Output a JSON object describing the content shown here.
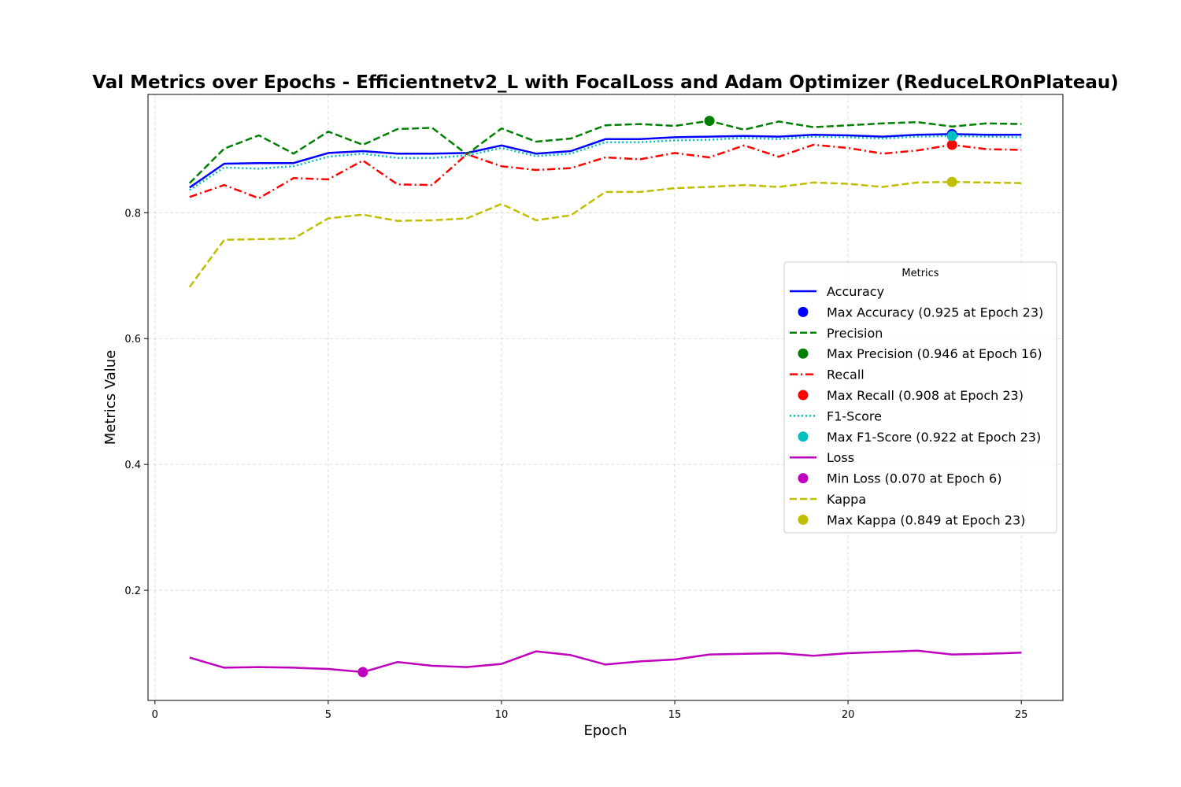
{
  "chart_data": {
    "type": "line",
    "title": "Val Metrics over Epochs - Efficientnetv2_L with FocalLoss and Adam Optimizer (ReduceLROnPlateau)",
    "xlabel": "Epoch",
    "ylabel": "Metrics Value",
    "xlim": [
      -0.2,
      26.2
    ],
    "ylim": [
      0.025,
      0.988
    ],
    "xticks": [
      0,
      5,
      10,
      15,
      20,
      25
    ],
    "yticks": [
      0.2,
      0.4,
      0.6,
      0.8
    ],
    "grid": true,
    "legend": {
      "title": "Metrics",
      "placement": "center-right"
    },
    "x": [
      1,
      2,
      3,
      4,
      5,
      6,
      7,
      8,
      9,
      10,
      11,
      12,
      13,
      14,
      15,
      16,
      17,
      18,
      19,
      20,
      21,
      22,
      23,
      24,
      25
    ],
    "series": [
      {
        "name": "Accuracy",
        "color": "#0000ff",
        "style": "solid",
        "values": [
          0.84,
          0.878,
          0.879,
          0.879,
          0.895,
          0.898,
          0.894,
          0.894,
          0.895,
          0.907,
          0.894,
          0.898,
          0.917,
          0.917,
          0.92,
          0.921,
          0.922,
          0.921,
          0.924,
          0.923,
          0.921,
          0.924,
          0.925,
          0.924,
          0.924
        ]
      },
      {
        "name": "Precision",
        "color": "#008000",
        "style": "dashed",
        "values": [
          0.847,
          0.902,
          0.923,
          0.894,
          0.929,
          0.908,
          0.933,
          0.935,
          0.893,
          0.934,
          0.913,
          0.918,
          0.939,
          0.941,
          0.938,
          0.946,
          0.932,
          0.945,
          0.936,
          0.939,
          0.942,
          0.944,
          0.937,
          0.942,
          0.941
        ]
      },
      {
        "name": "Recall",
        "color": "#ff0000",
        "style": "dashdot",
        "values": [
          0.825,
          0.844,
          0.823,
          0.855,
          0.853,
          0.883,
          0.845,
          0.844,
          0.893,
          0.874,
          0.868,
          0.871,
          0.888,
          0.885,
          0.895,
          0.888,
          0.907,
          0.889,
          0.908,
          0.903,
          0.894,
          0.899,
          0.908,
          0.901,
          0.9
        ]
      },
      {
        "name": "F1-Score",
        "color": "#00bfbf",
        "style": "dotted",
        "values": [
          0.836,
          0.872,
          0.87,
          0.874,
          0.889,
          0.894,
          0.887,
          0.887,
          0.891,
          0.903,
          0.89,
          0.894,
          0.912,
          0.912,
          0.915,
          0.916,
          0.919,
          0.917,
          0.921,
          0.92,
          0.918,
          0.921,
          0.922,
          0.921,
          0.92
        ]
      },
      {
        "name": "Loss",
        "color": "#bf00bf",
        "style": "solid",
        "values": [
          0.093,
          0.077,
          0.078,
          0.077,
          0.075,
          0.07,
          0.086,
          0.08,
          0.078,
          0.083,
          0.103,
          0.097,
          0.082,
          0.087,
          0.09,
          0.098,
          0.099,
          0.1,
          0.096,
          0.1,
          0.102,
          0.104,
          0.098,
          0.099,
          0.101
        ]
      },
      {
        "name": "Kappa",
        "color": "#bfbf00",
        "style": "dashed",
        "values": [
          0.682,
          0.757,
          0.758,
          0.759,
          0.791,
          0.797,
          0.787,
          0.788,
          0.791,
          0.814,
          0.788,
          0.796,
          0.833,
          0.833,
          0.839,
          0.841,
          0.844,
          0.841,
          0.848,
          0.846,
          0.841,
          0.848,
          0.849,
          0.848,
          0.847
        ]
      }
    ],
    "markers": [
      {
        "name": "Max Accuracy (0.925 at Epoch 23)",
        "color": "#0000ff",
        "x": 23,
        "y": 0.925
      },
      {
        "name": "Max Precision (0.946 at Epoch 16)",
        "color": "#008000",
        "x": 16,
        "y": 0.946
      },
      {
        "name": "Max Recall (0.908 at Epoch 23)",
        "color": "#ff0000",
        "x": 23,
        "y": 0.908
      },
      {
        "name": "Max F1-Score (0.922 at Epoch 23)",
        "color": "#00bfbf",
        "x": 23,
        "y": 0.922
      },
      {
        "name": "Min Loss (0.070 at Epoch 6)",
        "color": "#bf00bf",
        "x": 6,
        "y": 0.07
      },
      {
        "name": "Max Kappa (0.849 at Epoch 23)",
        "color": "#bfbf00",
        "x": 23,
        "y": 0.849
      }
    ],
    "legend_order": [
      {
        "kind": "line",
        "ref": 0
      },
      {
        "kind": "marker",
        "ref": 0
      },
      {
        "kind": "line",
        "ref": 1
      },
      {
        "kind": "marker",
        "ref": 1
      },
      {
        "kind": "line",
        "ref": 2
      },
      {
        "kind": "marker",
        "ref": 2
      },
      {
        "kind": "line",
        "ref": 3
      },
      {
        "kind": "marker",
        "ref": 3
      },
      {
        "kind": "line",
        "ref": 4
      },
      {
        "kind": "marker",
        "ref": 4
      },
      {
        "kind": "line",
        "ref": 5
      },
      {
        "kind": "marker",
        "ref": 5
      }
    ]
  }
}
